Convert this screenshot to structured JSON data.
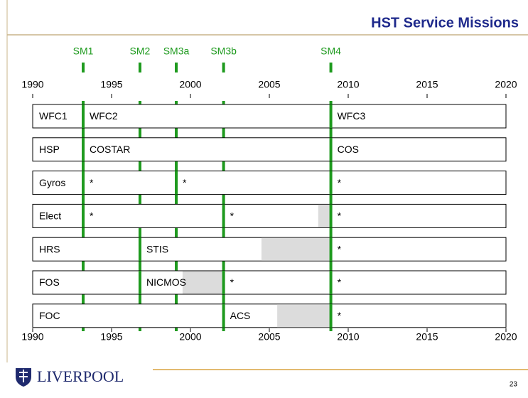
{
  "header": {
    "title": "HST Service Missions"
  },
  "timeline": {
    "xlim": [
      1990,
      2020
    ],
    "xticks": [
      1990,
      1995,
      2000,
      2005,
      2010,
      2015,
      2020
    ],
    "missions": [
      {
        "label": "SM1",
        "year": 1993.2
      },
      {
        "label": "SM2",
        "year": 1996.8
      },
      {
        "label": "SM3a",
        "year": 1999.1
      },
      {
        "label": "SM3b",
        "year": 2002.1
      },
      {
        "label": "SM4",
        "year": 2008.9
      }
    ],
    "rows": [
      {
        "items": [
          {
            "text": "WFC1",
            "from": 1990
          },
          {
            "text": "WFC2",
            "from": 1993.2
          },
          {
            "text": "WFC3",
            "from": 2008.9
          }
        ],
        "shaded": []
      },
      {
        "items": [
          {
            "text": "HSP",
            "from": 1990
          },
          {
            "text": "COSTAR",
            "from": 1993.2
          },
          {
            "text": "COS",
            "from": 2008.9
          }
        ],
        "shaded": []
      },
      {
        "items": [
          {
            "text": "Gyros",
            "from": 1990
          },
          {
            "text": "*",
            "from": 1993.2
          },
          {
            "text": "*",
            "from": 1999.1
          },
          {
            "text": "*",
            "from": 2008.9
          }
        ],
        "shaded": []
      },
      {
        "items": [
          {
            "text": "Elect",
            "from": 1990
          },
          {
            "text": "*",
            "from": 1993.2
          },
          {
            "text": "*",
            "from": 2002.1
          },
          {
            "text": "*",
            "from": 2008.9
          }
        ],
        "shaded": [
          {
            "from": 2008.1,
            "to": 2008.9
          }
        ]
      },
      {
        "items": [
          {
            "text": "HRS",
            "from": 1990
          },
          {
            "text": "STIS",
            "from": 1996.8
          },
          {
            "text": "*",
            "from": 2008.9
          }
        ],
        "shaded": [
          {
            "from": 2004.5,
            "to": 2008.9
          }
        ]
      },
      {
        "items": [
          {
            "text": "FOS",
            "from": 1990
          },
          {
            "text": "NICMOS",
            "from": 1996.8
          },
          {
            "text": "*",
            "from": 2002.1
          },
          {
            "text": "*",
            "from": 2008.9
          }
        ],
        "shaded": [
          {
            "from": 1999.5,
            "to": 2002.1
          }
        ]
      },
      {
        "items": [
          {
            "text": "FOC",
            "from": 1990
          },
          {
            "text": "ACS",
            "from": 2002.1
          },
          {
            "text": "*",
            "from": 2008.9
          }
        ],
        "shaded": [
          {
            "from": 2005.5,
            "to": 2008.9
          }
        ]
      }
    ]
  },
  "footer": {
    "logo_text": "LIVERPOOL",
    "page": "23"
  }
}
